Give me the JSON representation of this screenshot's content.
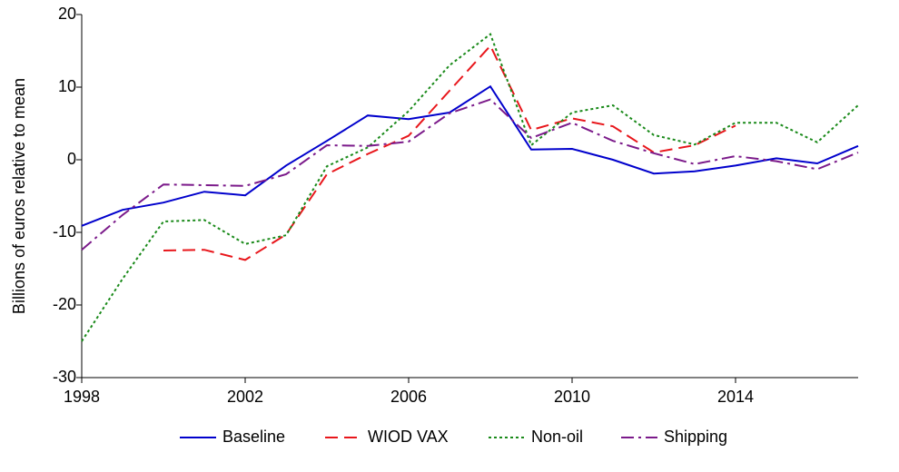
{
  "chart_data": {
    "type": "line",
    "ylabel": "Billions of euros relative to mean",
    "x": [
      1998,
      1999,
      2000,
      2001,
      2002,
      2003,
      2004,
      2005,
      2006,
      2007,
      2008,
      2009,
      2010,
      2011,
      2012,
      2013,
      2014,
      2015,
      2016,
      2017
    ],
    "xlim": [
      1998,
      2017
    ],
    "xticks": [
      1998,
      2002,
      2006,
      2010,
      2014
    ],
    "ylim": [
      -30,
      20
    ],
    "yticks": [
      -30,
      -20,
      -10,
      0,
      10,
      20
    ],
    "legend": "bottom",
    "grid": false,
    "series": [
      {
        "name": "Baseline",
        "color": "#0000cc",
        "style": "solid",
        "values": [
          -9.1,
          -6.9,
          -5.9,
          -4.4,
          -4.9,
          -0.8,
          2.6,
          6.1,
          5.6,
          6.5,
          10.1,
          1.4,
          1.5,
          0,
          -1.9,
          -1.6,
          -0.8,
          0.2,
          -0.5,
          1.9
        ]
      },
      {
        "name": "WIOD VAX",
        "color": "#e8161b",
        "style": "dashed",
        "values": [
          null,
          null,
          -12.5,
          -12.4,
          -13.8,
          -10.3,
          -2,
          0.8,
          3.3,
          9.5,
          15.7,
          4.1,
          5.7,
          4.6,
          1,
          2,
          4.7,
          null,
          null,
          null
        ]
      },
      {
        "name": "Non-oil",
        "color": "#1a8a1a",
        "style": "dotted",
        "values": [
          -25,
          -16.4,
          -8.5,
          -8.3,
          -11.6,
          -10.4,
          -0.9,
          1.7,
          6.7,
          13,
          17.3,
          2,
          6.5,
          7.5,
          3.4,
          2.1,
          5.1,
          5.1,
          2.4,
          7.5
        ]
      },
      {
        "name": "Shipping",
        "color": "#7b1a8a",
        "style": "dashdot",
        "values": [
          -12.4,
          -7.6,
          -3.4,
          -3.5,
          -3.6,
          -2,
          2,
          1.9,
          2.5,
          6.4,
          8.3,
          3,
          5.1,
          2.6,
          0.9,
          -0.6,
          0.5,
          -0.2,
          -1.3,
          1
        ]
      }
    ]
  }
}
